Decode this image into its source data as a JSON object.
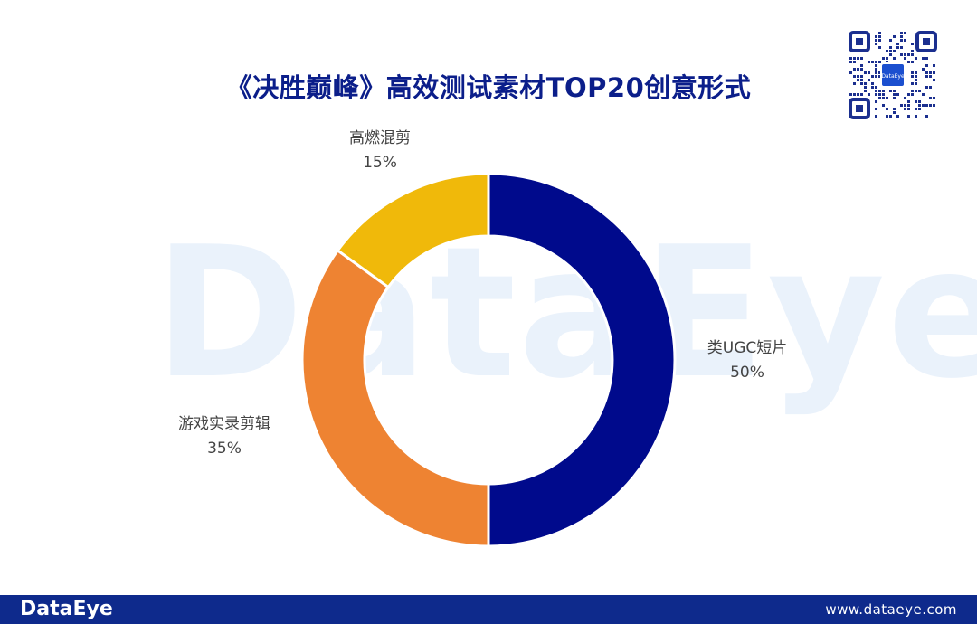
{
  "title": "《决胜巅峰》高效测试素材TOP20创意形式",
  "watermark": "DataEye",
  "footer": {
    "logo": "DataEye",
    "url": "www.dataeye.com"
  },
  "qr_badge": "DataEye",
  "colors": {
    "title": "#0b1e8a",
    "footer_bg": "#0e2a8c",
    "slice_1": "#000a8c",
    "slice_2": "#ee8332",
    "slice_3": "#f0b90a"
  },
  "chart_data": {
    "type": "pie",
    "donut": true,
    "title": "《决胜巅峰》高效测试素材TOP20创意形式",
    "categories": [
      "类UGC短片",
      "游戏实录剪辑",
      "高燃混剪"
    ],
    "values": [
      50,
      35,
      15
    ],
    "labels": [
      "50%",
      "35%",
      "15%"
    ],
    "colors": [
      "#000a8c",
      "#ee8332",
      "#f0b90a"
    ]
  }
}
